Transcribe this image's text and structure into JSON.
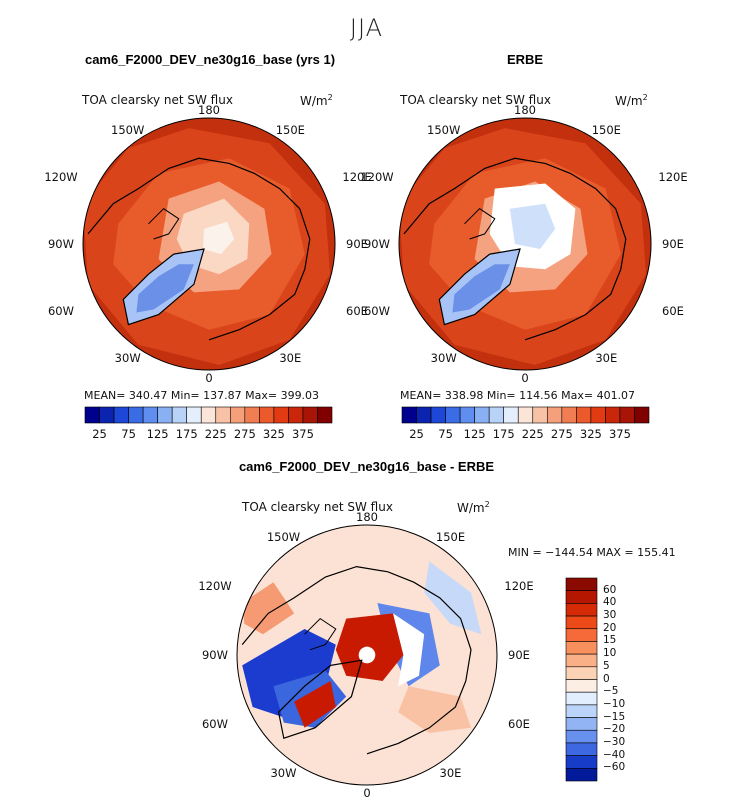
{
  "season": "JJA",
  "field": "TOA clearsky net SW flux",
  "units": "W/m",
  "units_sup": "2",
  "longitude_labels": {
    "top": "180",
    "tl": "150W",
    "tr": "150E",
    "ul": "120W",
    "ur": "120E",
    "l": "90W",
    "r": "90E",
    "ll": "60W",
    "lr": "60E",
    "bl": "30W",
    "br": "30E",
    "bottom": "0"
  },
  "panels": [
    {
      "title": "cam6_F2000_DEV_ne30g16_base (yrs 1)",
      "stats": "MEAN= 340.47   Min= 137.87   Max= 399.03"
    },
    {
      "title": "ERBE",
      "stats": "MEAN= 338.98   Min= 114.56   Max= 401.07"
    },
    {
      "title": "cam6_F2000_DEV_ne30g16_base - ERBE",
      "stats": "MIN = −144.54  MAX = 155.41"
    }
  ],
  "colorbar_abs": {
    "tick_labels": [
      "25",
      "75",
      "125",
      "175",
      "225",
      "275",
      "325",
      "375"
    ],
    "colors": [
      "#00008f",
      "#0b24b0",
      "#1d47d6",
      "#3a6ce6",
      "#5f8ef0",
      "#8ab0f4",
      "#b8d2f8",
      "#e4eefc",
      "#fbe4d8",
      "#f8c2a6",
      "#f5a07a",
      "#f17e52",
      "#ec5a2c",
      "#e23a12",
      "#c9260a",
      "#a81506",
      "#800000"
    ]
  },
  "colorbar_diff": {
    "tick_labels": [
      "60",
      "40",
      "30",
      "20",
      "15",
      "10",
      "5",
      "0",
      "−5",
      "−10",
      "−15",
      "−20",
      "−30",
      "−40",
      "−60"
    ],
    "colors": [
      "#8a0a00",
      "#b41600",
      "#d42a06",
      "#ec4a18",
      "#f56a38",
      "#f8905e",
      "#fab086",
      "#fcd2b4",
      "#fdeee4",
      "#e2eefd",
      "#bcd3fa",
      "#92b4f4",
      "#6890ee",
      "#3d68e2",
      "#173cc8",
      "#001a9a"
    ]
  },
  "map_colors": {
    "abs_ocean": "#c3300e",
    "abs_mid": "#d9441a",
    "abs_land": "#e85c2c",
    "abs_ice": "#f4a280",
    "abs_light": "#fbd8c4",
    "abs_white": "#fcf2ec",
    "greenland": "#6a90e8",
    "greenland_light": "#a8c4f6",
    "diff_bg": "#fbe2d4",
    "diff_red": "#c81a00",
    "diff_blue": "#1c3cd0"
  }
}
